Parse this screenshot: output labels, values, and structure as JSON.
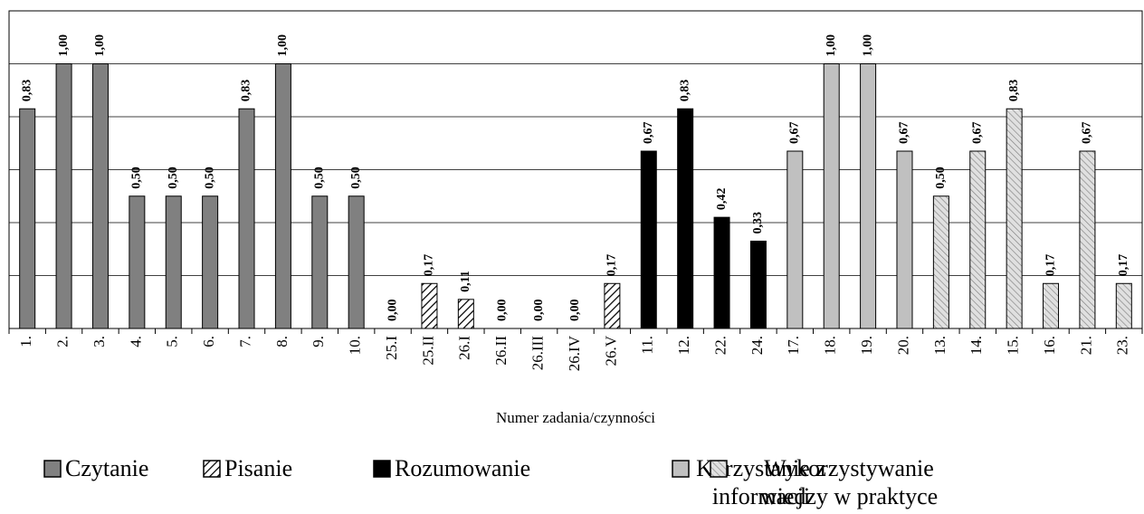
{
  "chart_data": {
    "type": "bar",
    "x_label": "Numer zadania/czynności",
    "categories": [
      "1.",
      "2.",
      "3.",
      "4.",
      "5.",
      "6.",
      "7.",
      "8.",
      "9.",
      "10.",
      "25.I",
      "25.II",
      "26.I",
      "26.II",
      "26.III",
      "26.IV",
      "26.V",
      "11.",
      "12.",
      "22.",
      "24.",
      "17.",
      "18.",
      "19.",
      "20.",
      "13.",
      "14.",
      "15.",
      "16.",
      "21.",
      "23."
    ],
    "series": [
      {
        "name": "Czytanie",
        "color": "#808080",
        "values": [
          0.83,
          1.0,
          1.0,
          0.5,
          0.5,
          0.5,
          0.83,
          1.0,
          0.5,
          0.5,
          null,
          null,
          null,
          null,
          null,
          null,
          null,
          null,
          null,
          null,
          null,
          null,
          null,
          null,
          null,
          null,
          null,
          null,
          null,
          null,
          null
        ],
        "value_labels": [
          "0,83",
          "1,00",
          "1,00",
          "0,50",
          "0,50",
          "0,50",
          "0,83",
          "1,00",
          "0,50",
          "0,50",
          null,
          null,
          null,
          null,
          null,
          null,
          null,
          null,
          null,
          null,
          null,
          null,
          null,
          null,
          null,
          null,
          null,
          null,
          null,
          null,
          null
        ]
      },
      {
        "name": "Pisanie",
        "color": "#000000",
        "hatch": "forward",
        "values": [
          null,
          null,
          null,
          null,
          null,
          null,
          null,
          null,
          null,
          null,
          0.0,
          0.17,
          0.11,
          0.0,
          0.0,
          0.0,
          0.17,
          null,
          null,
          null,
          null,
          null,
          null,
          null,
          null,
          null,
          null,
          null,
          null,
          null,
          null
        ],
        "value_labels": [
          null,
          null,
          null,
          null,
          null,
          null,
          null,
          null,
          null,
          null,
          "0,00",
          "0,17",
          "0,11",
          "0,00",
          "0,00",
          "0,00",
          "0,17",
          null,
          null,
          null,
          null,
          null,
          null,
          null,
          null,
          null,
          null,
          null,
          null,
          null,
          null
        ]
      },
      {
        "name": "Rozumowanie",
        "color": "#000000",
        "values": [
          null,
          null,
          null,
          null,
          null,
          null,
          null,
          null,
          null,
          null,
          null,
          null,
          null,
          null,
          null,
          null,
          null,
          0.67,
          0.83,
          0.42,
          0.33,
          null,
          null,
          null,
          null,
          null,
          null,
          null,
          null,
          null,
          null
        ],
        "value_labels": [
          null,
          null,
          null,
          null,
          null,
          null,
          null,
          null,
          null,
          null,
          null,
          null,
          null,
          null,
          null,
          null,
          null,
          "0,67",
          "0,83",
          "0,42",
          "0,33",
          null,
          null,
          null,
          null,
          null,
          null,
          null,
          null,
          null,
          null
        ]
      },
      {
        "name": "Korzystanie z informacji",
        "color": "#c0c0c0",
        "values": [
          null,
          null,
          null,
          null,
          null,
          null,
          null,
          null,
          null,
          null,
          null,
          null,
          null,
          null,
          null,
          null,
          null,
          null,
          null,
          null,
          null,
          0.67,
          1.0,
          1.0,
          0.67,
          null,
          null,
          null,
          null,
          null,
          null
        ],
        "value_labels": [
          null,
          null,
          null,
          null,
          null,
          null,
          null,
          null,
          null,
          null,
          null,
          null,
          null,
          null,
          null,
          null,
          null,
          null,
          null,
          null,
          null,
          "0,67",
          "1,00",
          "1,00",
          "0,67",
          null,
          null,
          null,
          null,
          null,
          null
        ]
      },
      {
        "name": "Wykorzystywanie wiedzy w praktyce",
        "color": "#808080",
        "hatch": "backward",
        "values": [
          null,
          null,
          null,
          null,
          null,
          null,
          null,
          null,
          null,
          null,
          null,
          null,
          null,
          null,
          null,
          null,
          null,
          null,
          null,
          null,
          null,
          null,
          null,
          null,
          null,
          0.5,
          0.67,
          0.83,
          0.17,
          0.67,
          0.17
        ],
        "value_labels": [
          null,
          null,
          null,
          null,
          null,
          null,
          null,
          null,
          null,
          null,
          null,
          null,
          null,
          null,
          null,
          null,
          null,
          null,
          null,
          null,
          null,
          null,
          null,
          null,
          null,
          "0,50",
          "0,67",
          "0,83",
          "0,17",
          "0,67",
          "0,17"
        ]
      }
    ],
    "ylim": [
      0,
      1.2
    ],
    "yticks": [
      0,
      0.2,
      0.4,
      0.6,
      0.8,
      1,
      1.2
    ],
    "grid": true
  }
}
